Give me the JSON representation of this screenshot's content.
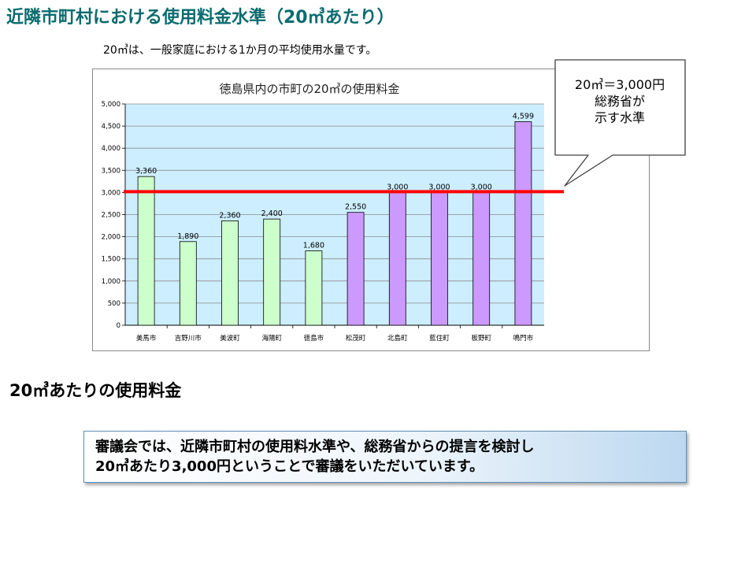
{
  "slide": {
    "title": "近隣市町村における使用料金水準（20㎥あたり）",
    "note": "20㎥は、一般家庭における1か月の平均使用水量です。",
    "callout": [
      "20㎥＝3,000円",
      "総務省が",
      "示す水準"
    ],
    "section_heading": "20㎥あたりの使用料金",
    "summary": [
      "審議会では、近隣市町村の使用料水準や、総務省からの提言を検討し",
      "20㎥あたり3,000円ということで審議をいただいています。"
    ]
  },
  "chart_data": {
    "type": "bar",
    "title": "徳島県内の市町の20㎥の使用料金",
    "categories": [
      "美馬市",
      "吉野川市",
      "美波町",
      "海陽町",
      "徳島市",
      "松茂町",
      "北島町",
      "藍住町",
      "板野町",
      "鳴門市"
    ],
    "values": [
      3360,
      1890,
      2360,
      2400,
      1680,
      2550,
      3000,
      3000,
      3000,
      4599
    ],
    "value_labels": [
      "3,360",
      "1,890",
      "2,360",
      "2,400",
      "1,680",
      "2,550",
      "3,000",
      "3,000",
      "3,000",
      "4,599"
    ],
    "yticks": [
      "0",
      "500",
      "1,000",
      "1,500",
      "2,000",
      "2,500",
      "3,000",
      "3,500",
      "4,000",
      "4,500",
      "5,000"
    ],
    "ylim": [
      0,
      5000
    ],
    "reference_line": 3000,
    "colors": {
      "green_bar": "#ccffcc",
      "purple_bar": "#cc99ff",
      "plot_background": "#cceeff",
      "reference_line": "#ff0000"
    },
    "bar_color_groups": [
      "green",
      "green",
      "green",
      "green",
      "green",
      "purple",
      "purple",
      "purple",
      "purple",
      "purple"
    ]
  }
}
